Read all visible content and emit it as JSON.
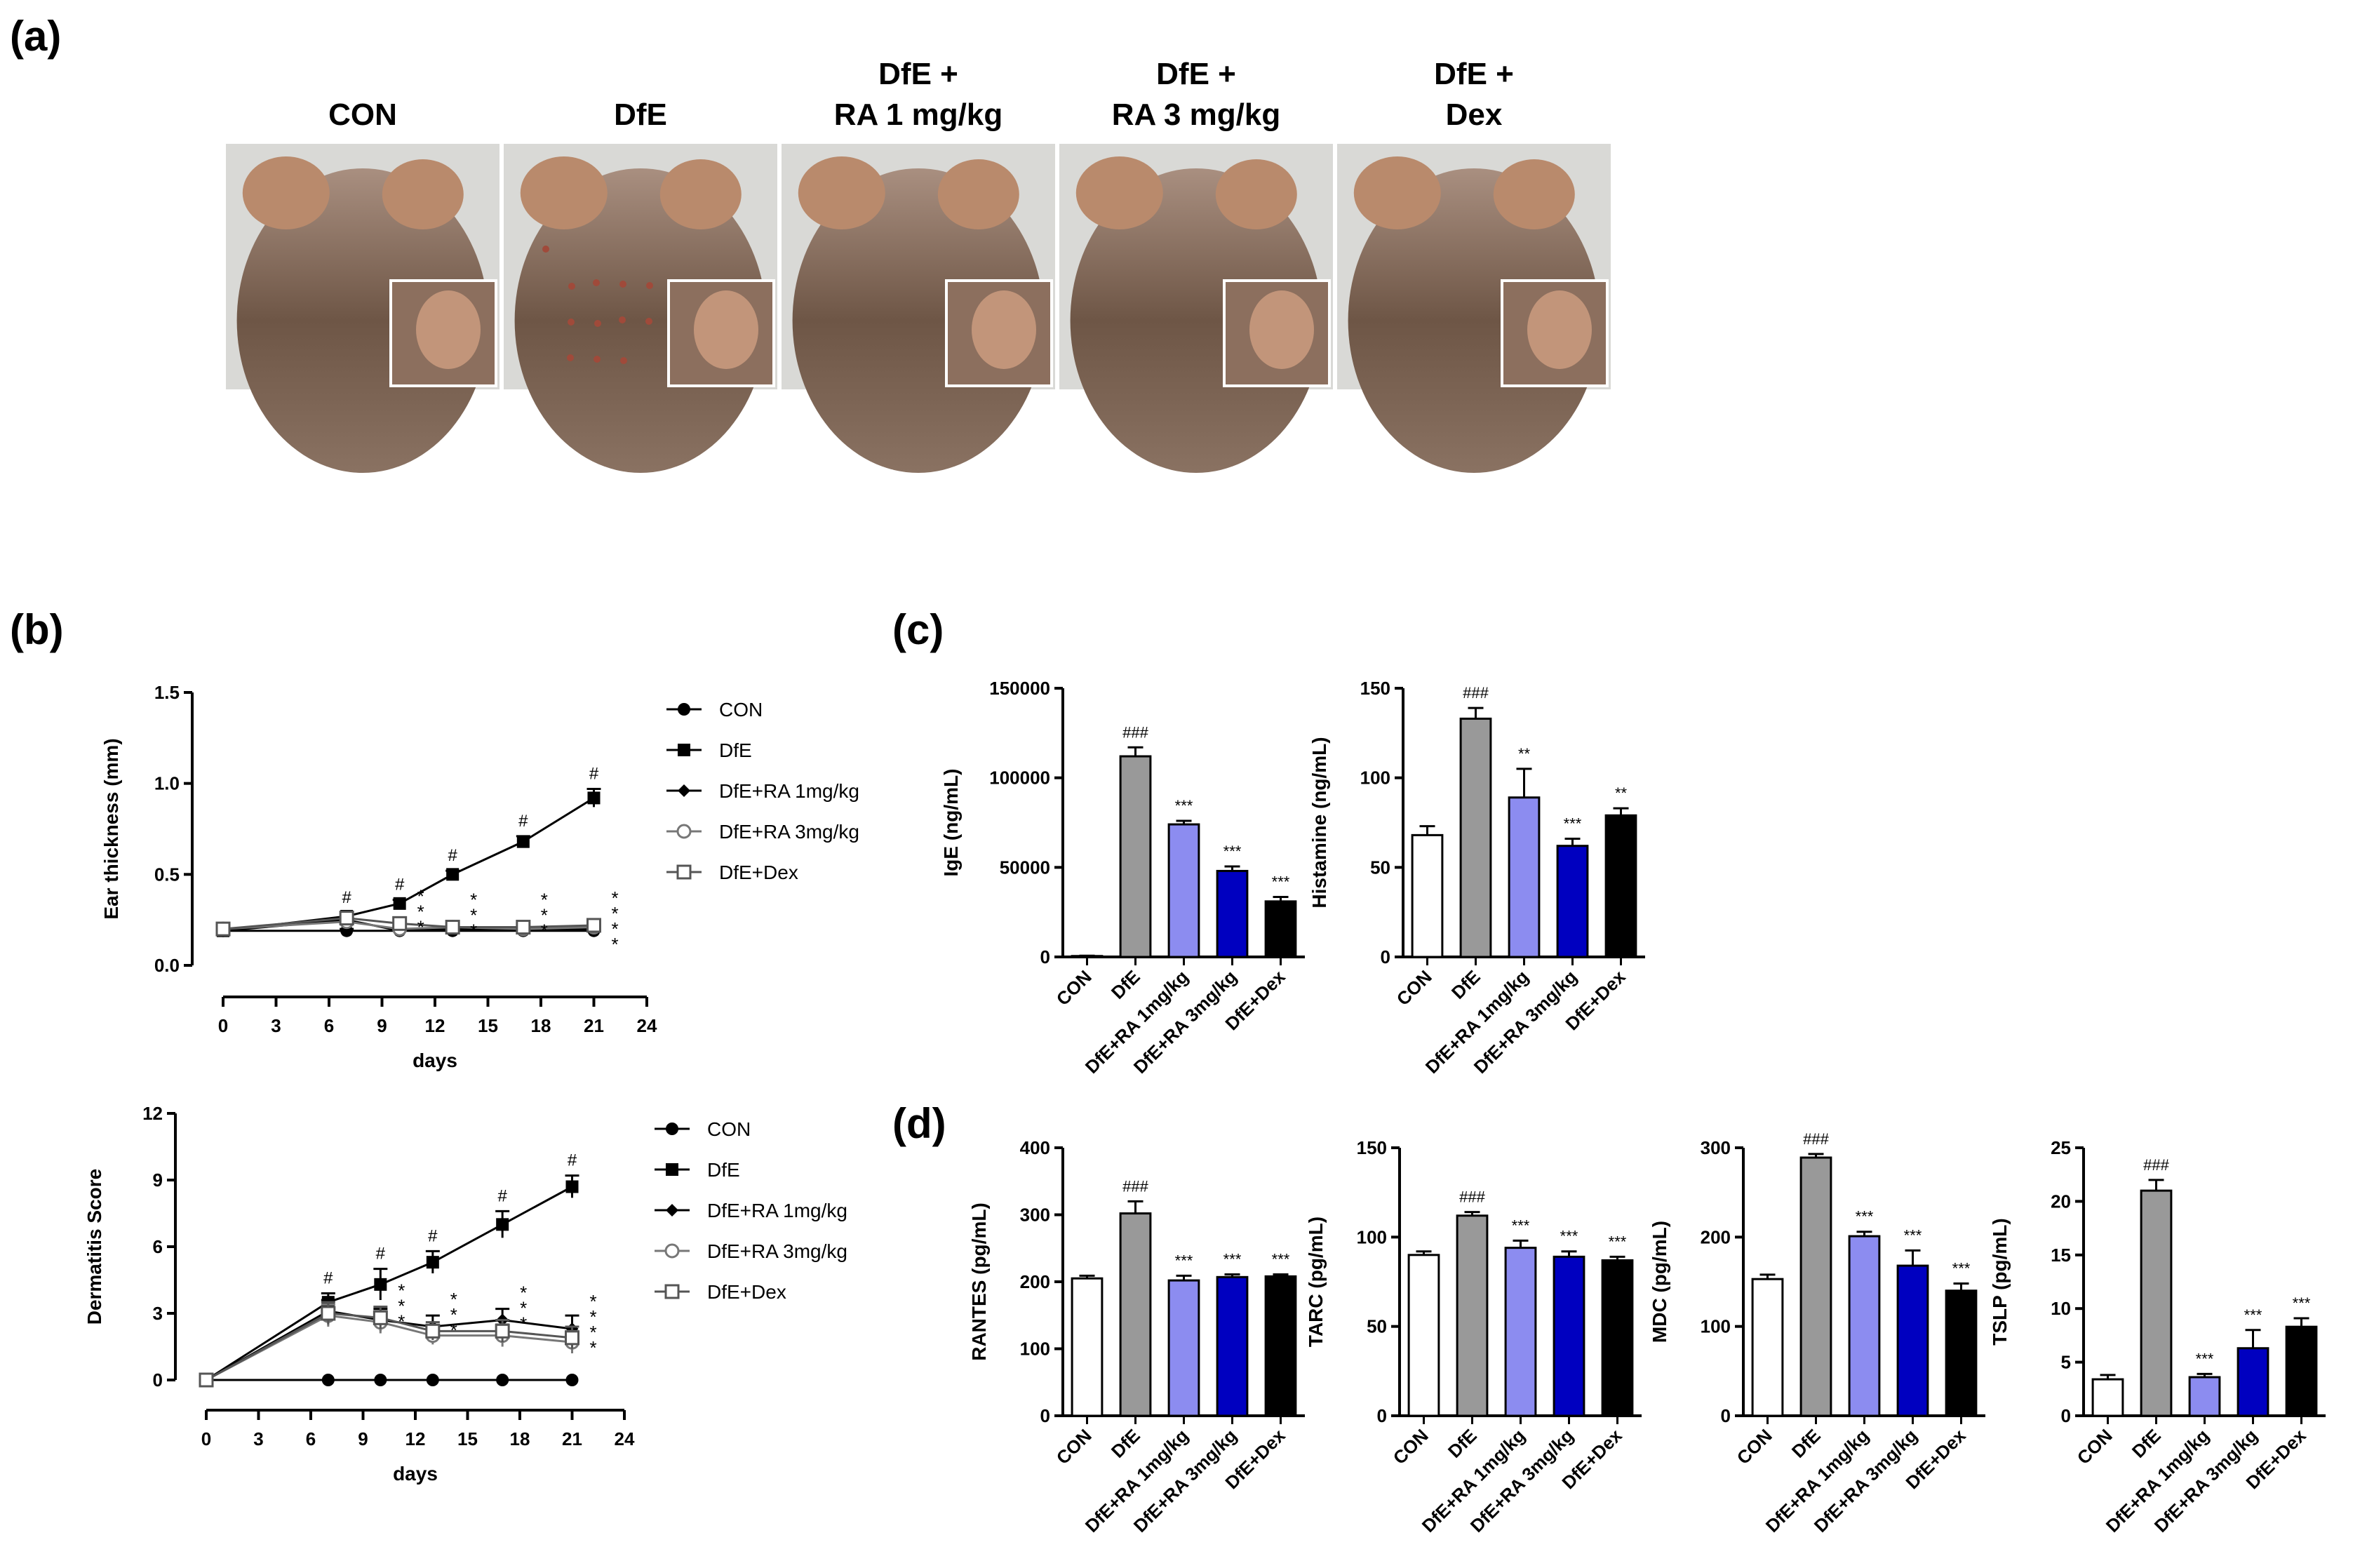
{
  "panel_labels": {
    "a": "(a)",
    "b": "(b)",
    "c": "(c)",
    "d": "(d)"
  },
  "photos": {
    "titles": [
      [
        "CON"
      ],
      [
        "DfE"
      ],
      [
        "DfE +",
        "RA 1 mg/kg"
      ],
      [
        "DfE +",
        "RA 3 mg/kg"
      ],
      [
        "DfE +",
        "Dex"
      ]
    ]
  },
  "bar_groups": [
    "CON",
    "DfE",
    "DfE+RA 1mg/kg",
    "DfE+RA 3mg/kg",
    "DfE+Dex"
  ],
  "bar_colors": [
    "#ffffff",
    "#999999",
    "#8c8cf0",
    "#0000c0",
    "#000000"
  ],
  "chart_data": [
    {
      "id": "ear_thickness",
      "type": "line",
      "ylabel": "Ear thickness (mm)",
      "xlabel": "days",
      "ylim": [
        0,
        1.5
      ],
      "yticks": [
        "0.0",
        "0.5",
        "1.0",
        "1.5"
      ],
      "xlim": [
        0,
        24
      ],
      "xticks": [
        "0",
        "3",
        "6",
        "9",
        "12",
        "15",
        "18",
        "21",
        "24"
      ],
      "x": [
        0,
        7,
        10,
        13,
        17,
        21
      ],
      "series": [
        {
          "name": "CON",
          "marker": "circle",
          "values": [
            0.19,
            0.19,
            0.19,
            0.19,
            0.19,
            0.19
          ],
          "err": [
            0.01,
            0.01,
            0.01,
            0.01,
            0.01,
            0.01
          ]
        },
        {
          "name": "DfE",
          "marker": "square",
          "values": [
            0.19,
            0.27,
            0.34,
            0.5,
            0.68,
            0.92
          ],
          "err": [
            0.01,
            0.02,
            0.02,
            0.02,
            0.03,
            0.05
          ]
        },
        {
          "name": "DfE+RA 1mg/kg",
          "marker": "diamond",
          "values": [
            0.19,
            0.25,
            0.19,
            0.2,
            0.19,
            0.2
          ],
          "err": [
            0.01,
            0.02,
            0.02,
            0.02,
            0.02,
            0.02
          ]
        },
        {
          "name": "DfE+RA 3mg/kg",
          "marker": "open-circle",
          "values": [
            0.2,
            0.24,
            0.2,
            0.21,
            0.2,
            0.21
          ],
          "err": [
            0.01,
            0.02,
            0.02,
            0.02,
            0.02,
            0.02
          ]
        },
        {
          "name": "DfE+Dex",
          "marker": "open-square",
          "values": [
            0.2,
            0.26,
            0.23,
            0.21,
            0.21,
            0.22
          ],
          "err": [
            0.01,
            0.02,
            0.02,
            0.02,
            0.02,
            0.02
          ]
        }
      ],
      "hash_marks": [
        {
          "x": 7,
          "label": "#"
        },
        {
          "x": 10,
          "label": "#"
        },
        {
          "x": 13,
          "label": "#"
        },
        {
          "x": 17,
          "label": "#"
        },
        {
          "x": 21,
          "label": "#"
        }
      ],
      "star_marks": [
        {
          "x": 10,
          "label": "***"
        },
        {
          "x": 13,
          "label": "***"
        },
        {
          "x": 17,
          "label": "***"
        },
        {
          "x": 21,
          "label": "****"
        }
      ]
    },
    {
      "id": "dermatitis_score",
      "type": "line",
      "ylabel": "Dermatitis Score",
      "xlabel": "days",
      "ylim": [
        0,
        12
      ],
      "yticks": [
        "0",
        "3",
        "6",
        "9",
        "12"
      ],
      "xlim": [
        0,
        24
      ],
      "xticks": [
        "0",
        "3",
        "6",
        "9",
        "12",
        "15",
        "18",
        "21",
        "24"
      ],
      "x": [
        0,
        7,
        10,
        13,
        17,
        21
      ],
      "series": [
        {
          "name": "CON",
          "marker": "circle",
          "values": [
            0,
            0,
            0,
            0,
            0,
            0
          ],
          "err": [
            0,
            0,
            0,
            0,
            0,
            0
          ]
        },
        {
          "name": "DfE",
          "marker": "square",
          "values": [
            0,
            3.5,
            4.3,
            5.3,
            7.0,
            8.7
          ],
          "err": [
            0,
            0.4,
            0.7,
            0.5,
            0.6,
            0.5
          ]
        },
        {
          "name": "DfE+RA 1mg/kg",
          "marker": "diamond",
          "values": [
            0,
            3.1,
            2.7,
            2.4,
            2.7,
            2.3
          ],
          "err": [
            0,
            0.5,
            0.5,
            0.5,
            0.5,
            0.6
          ]
        },
        {
          "name": "DfE+RA 3mg/kg",
          "marker": "open-circle",
          "values": [
            0,
            2.9,
            2.6,
            2.0,
            2.0,
            1.7
          ],
          "err": [
            0,
            0.5,
            0.5,
            0.4,
            0.5,
            0.5
          ]
        },
        {
          "name": "DfE+Dex",
          "marker": "open-square",
          "values": [
            0,
            3.0,
            2.8,
            2.2,
            2.2,
            1.9
          ],
          "err": [
            0,
            0.5,
            0.5,
            0.4,
            0.5,
            0.5
          ]
        }
      ],
      "hash_marks": [
        {
          "x": 7,
          "label": "#"
        },
        {
          "x": 10,
          "label": "#"
        },
        {
          "x": 13,
          "label": "#"
        },
        {
          "x": 17,
          "label": "#"
        },
        {
          "x": 21,
          "label": "#"
        }
      ],
      "star_marks": [
        {
          "x": 10,
          "label": "***"
        },
        {
          "x": 13,
          "label": "***"
        },
        {
          "x": 17,
          "label": "***"
        },
        {
          "x": 21,
          "label": "****"
        }
      ]
    },
    {
      "id": "ige",
      "type": "bar",
      "ylabel": "IgE (ng/mL)",
      "ylim": [
        0,
        150000
      ],
      "yticks": [
        "0",
        "50000",
        "100000",
        "150000"
      ],
      "values": [
        500,
        112000,
        74000,
        48000,
        31000
      ],
      "err": [
        200,
        5000,
        2000,
        2500,
        2500
      ],
      "annotations": [
        "",
        "###",
        "***",
        "***",
        "***"
      ]
    },
    {
      "id": "histamine",
      "type": "bar",
      "ylabel": "Histamine (ng/mL)",
      "ylim": [
        0,
        150
      ],
      "yticks": [
        "0",
        "50",
        "100",
        "150"
      ],
      "values": [
        68,
        133,
        89,
        62,
        79
      ],
      "err": [
        5,
        6,
        16,
        4,
        4
      ],
      "annotations": [
        "",
        "###",
        "**",
        "***",
        "**"
      ]
    },
    {
      "id": "rantes",
      "type": "bar",
      "ylabel": "RANTES (pg/mL)",
      "ylim": [
        0,
        400
      ],
      "yticks": [
        "0",
        "100",
        "200",
        "300",
        "400"
      ],
      "values": [
        205,
        302,
        202,
        207,
        208
      ],
      "err": [
        4,
        18,
        7,
        4,
        3
      ],
      "annotations": [
        "",
        "###",
        "***",
        "***",
        "***"
      ]
    },
    {
      "id": "tarc",
      "type": "bar",
      "ylabel": "TARC (pg/mL)",
      "ylim": [
        0,
        150
      ],
      "yticks": [
        "0",
        "50",
        "100",
        "150"
      ],
      "values": [
        90,
        112,
        94,
        89,
        87
      ],
      "err": [
        2,
        2,
        4,
        3,
        2
      ],
      "annotations": [
        "",
        "###",
        "***",
        "***",
        "***"
      ]
    },
    {
      "id": "mdc",
      "type": "bar",
      "ylabel": "MDC (pg/mL)",
      "ylim": [
        0,
        300
      ],
      "yticks": [
        "0",
        "100",
        "200",
        "300"
      ],
      "values": [
        153,
        289,
        201,
        168,
        140
      ],
      "err": [
        5,
        4,
        5,
        17,
        8
      ],
      "annotations": [
        "",
        "###",
        "***",
        "***",
        "***"
      ]
    },
    {
      "id": "tslp",
      "type": "bar",
      "ylabel": "TSLP (pg/mL)",
      "ylim": [
        0,
        25
      ],
      "yticks": [
        "0",
        "5",
        "10",
        "15",
        "20",
        "25"
      ],
      "values": [
        3.4,
        21.0,
        3.6,
        6.3,
        8.3
      ],
      "err": [
        0.4,
        1.0,
        0.3,
        1.7,
        0.8
      ],
      "annotations": [
        "",
        "###",
        "***",
        "***",
        "***"
      ]
    }
  ]
}
